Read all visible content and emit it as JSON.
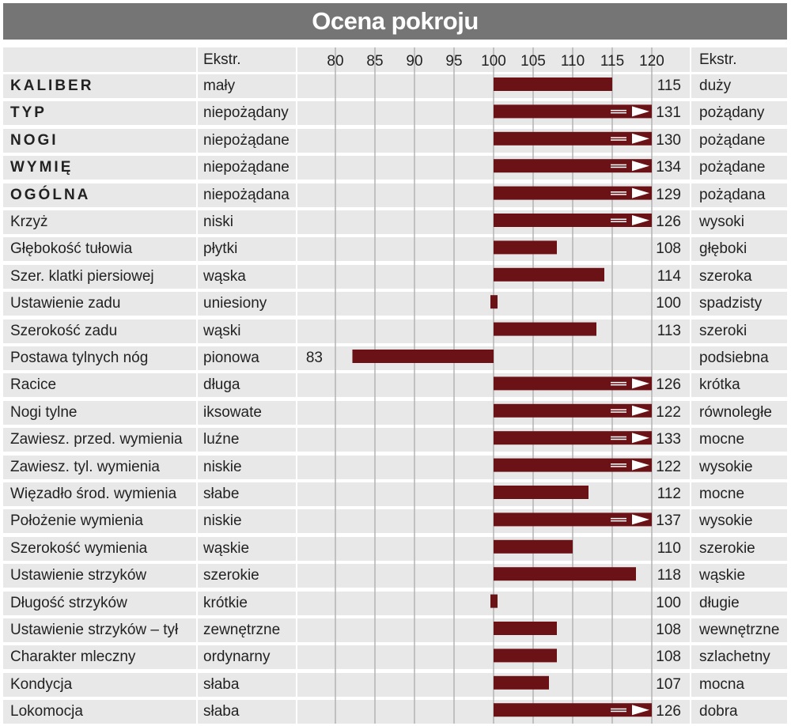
{
  "title": "Ocena pokroju",
  "header": {
    "low_label": "Ekstr.",
    "high_label": "Ekstr."
  },
  "colors": {
    "bar": "#6a1216",
    "title_bg": "#757575",
    "stripe": "#e8e8e8",
    "grid": "#b3b3b3"
  },
  "chart_data": {
    "type": "bar",
    "orientation": "horizontal",
    "baseline": 100,
    "axis_ticks": [
      80,
      85,
      90,
      95,
      100,
      105,
      110,
      115,
      120
    ],
    "xlim": [
      80,
      120
    ],
    "overflow_marker": "arrow beyond 120",
    "rows": [
      {
        "trait": "KALIBER",
        "bold": true,
        "low": "mały",
        "value": 115,
        "high": "duży"
      },
      {
        "trait": "TYP",
        "bold": true,
        "low": "niepożądany",
        "value": 131,
        "high": "pożądany"
      },
      {
        "trait": "NOGI",
        "bold": true,
        "low": "niepożądane",
        "value": 130,
        "high": "pożądane"
      },
      {
        "trait": "WYMIĘ",
        "bold": true,
        "low": "niepożądane",
        "value": 134,
        "high": "pożądane"
      },
      {
        "trait": "OGÓLNA",
        "bold": true,
        "low": "niepożądana",
        "value": 129,
        "high": "pożądana"
      },
      {
        "trait": "Krzyż",
        "bold": false,
        "low": "niski",
        "value": 126,
        "high": "wysoki"
      },
      {
        "trait": "Głębokość tułowia",
        "bold": false,
        "low": "płytki",
        "value": 108,
        "high": "głęboki"
      },
      {
        "trait": "Szer. klatki piersiowej",
        "bold": false,
        "low": "wąska",
        "value": 114,
        "high": "szeroka"
      },
      {
        "trait": "Ustawienie zadu",
        "bold": false,
        "low": "uniesiony",
        "value": 100,
        "high": "spadzisty"
      },
      {
        "trait": "Szerokość zadu",
        "bold": false,
        "low": "wąski",
        "value": 113,
        "high": "szeroki"
      },
      {
        "trait": "Postawa tylnych nóg",
        "bold": false,
        "low": "pionowa",
        "value": 83,
        "high": "podsiebna"
      },
      {
        "trait": "Racice",
        "bold": false,
        "low": "długa",
        "value": 126,
        "high": "krótka"
      },
      {
        "trait": "Nogi tylne",
        "bold": false,
        "low": "iksowate",
        "value": 122,
        "high": "równoległe"
      },
      {
        "trait": "Zawiesz. przed. wymienia",
        "bold": false,
        "low": "luźne",
        "value": 133,
        "high": "mocne"
      },
      {
        "trait": "Zawiesz. tyl. wymienia",
        "bold": false,
        "low": "niskie",
        "value": 122,
        "high": "wysokie"
      },
      {
        "trait": "Więzadło środ. wymienia",
        "bold": false,
        "low": "słabe",
        "value": 112,
        "high": "mocne"
      },
      {
        "trait": "Położenie wymienia",
        "bold": false,
        "low": "niskie",
        "value": 137,
        "high": "wysokie"
      },
      {
        "trait": "Szerokość wymienia",
        "bold": false,
        "low": "wąskie",
        "value": 110,
        "high": "szerokie"
      },
      {
        "trait": "Ustawienie strzyków",
        "bold": false,
        "low": "szerokie",
        "value": 118,
        "high": "wąskie"
      },
      {
        "trait": "Długość strzyków",
        "bold": false,
        "low": "krótkie",
        "value": 100,
        "high": "długie"
      },
      {
        "trait": "Ustawienie strzyków – tył",
        "bold": false,
        "low": "zewnętrzne",
        "value": 108,
        "high": "wewnętrzne"
      },
      {
        "trait": "Charakter mleczny",
        "bold": false,
        "low": "ordynarny",
        "value": 108,
        "high": "szlachetny"
      },
      {
        "trait": "Kondycja",
        "bold": false,
        "low": "słaba",
        "value": 107,
        "high": "mocna"
      },
      {
        "trait": "Lokomocja",
        "bold": false,
        "low": "słaba",
        "value": 126,
        "high": "dobra"
      }
    ]
  }
}
